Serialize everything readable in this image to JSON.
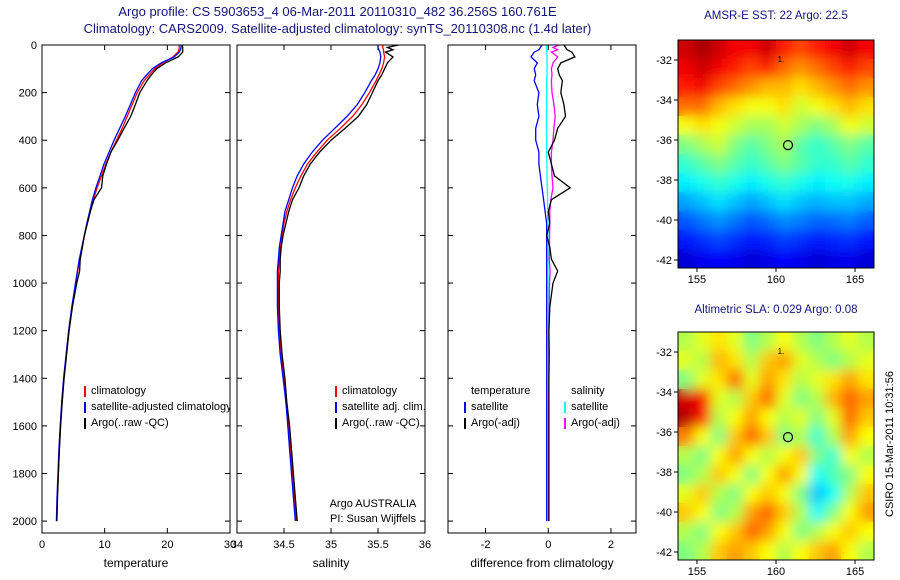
{
  "header": {
    "line1": "Argo profile: CS 5903653_4 06-Mar-2011 20110310_482 36.256S 160.761E",
    "line2": "Climatology: CARS2009. Satellite-adjusted climatology: synTS_20110308.nc (1.4d later)"
  },
  "watermark": "CSIRO 15-Mar-2011 10:31:56",
  "panels": {
    "temperature": {
      "xlabel": "temperature",
      "legend": [
        {
          "label": "climatology",
          "color": "#ff0000"
        },
        {
          "label": "satellite-adjusted climatology",
          "color": "#0000ff"
        },
        {
          "label": "Argo(..raw -QC)",
          "color": "#000000"
        }
      ]
    },
    "salinity": {
      "xlabel": "salinity",
      "legend": [
        {
          "label": "climatology",
          "color": "#ff0000"
        },
        {
          "label": "satellite adj. clim.",
          "color": "#0000ff"
        },
        {
          "label": "Argo(..raw -QC)",
          "color": "#000000"
        }
      ],
      "notes": [
        "Argo AUSTRALIA",
        "PI: Susan Wijffels"
      ]
    },
    "difference": {
      "xlabel": "difference from climatology",
      "legend_groups": [
        {
          "header": "temperature",
          "entries": [
            {
              "label": "satellite",
              "color": "#0000ff"
            },
            {
              "label": "Argo(-adj)",
              "color": "#000000"
            }
          ]
        },
        {
          "header": "salinity",
          "entries": [
            {
              "label": "satellite",
              "color": "#00ffff"
            },
            {
              "label": "Argo(-adj)",
              "color": "#ff00ff"
            }
          ]
        }
      ]
    }
  },
  "maps": {
    "sst": {
      "title": "AMSR-E SST: 22 Argo: 22.5"
    },
    "sla": {
      "title": "Altimetric SLA: 0.029 Argo: 0.08"
    }
  },
  "chart_data": {
    "type": "line",
    "depth_lim": [
      0,
      2050
    ],
    "depth_ticks": [
      0,
      200,
      400,
      600,
      800,
      1000,
      1200,
      1400,
      1600,
      1800,
      2000
    ],
    "depths": [
      0,
      10,
      20,
      30,
      50,
      75,
      100,
      125,
      150,
      200,
      250,
      300,
      350,
      400,
      450,
      500,
      550,
      600,
      650,
      700,
      750,
      800,
      850,
      900,
      950,
      1000,
      1100,
      1200,
      1300,
      1400,
      1500,
      1600,
      1700,
      1800,
      1900,
      2000
    ],
    "panels": [
      {
        "name": "temperature",
        "xlim": [
          0,
          30
        ],
        "xticks": [
          0,
          10,
          20,
          30
        ],
        "series": [
          {
            "name": "climatology",
            "color": "#ff0000",
            "values": [
              21.9,
              21.9,
              21.85,
              21.7,
              20.9,
              19.3,
              18.0,
              17.1,
              16.3,
              15.2,
              14.4,
              13.6,
              12.8,
              11.9,
              11.0,
              10.2,
              9.5,
              8.8,
              8.2,
              7.7,
              7.2,
              6.8,
              6.4,
              6.0,
              5.7,
              5.4,
              4.8,
              4.3,
              3.9,
              3.5,
              3.2,
              2.95,
              2.75,
              2.6,
              2.45,
              2.35
            ]
          },
          {
            "name": "satellite-adjusted-climatology",
            "color": "#0000ff",
            "values": [
              22.2,
              22.2,
              22.1,
              21.9,
              21.1,
              19.0,
              17.6,
              16.7,
              15.9,
              14.9,
              14.1,
              13.3,
              12.4,
              11.5,
              10.7,
              9.9,
              9.25,
              8.6,
              8.05,
              7.6,
              7.15,
              6.75,
              6.35,
              5.95,
              5.65,
              5.35,
              4.75,
              4.25,
              3.85,
              3.45,
              3.15,
              2.9,
              2.7,
              2.55,
              2.4,
              2.3
            ]
          },
          {
            "name": "argo-raw",
            "color": "#000000",
            "values": [
              22.4,
              22.45,
              22.45,
              22.45,
              21.75,
              19.7,
              18.3,
              17.45,
              16.75,
              15.6,
              14.9,
              14.15,
              13.1,
              12.1,
              11.0,
              10.3,
              9.7,
              9.5,
              8.3,
              7.7,
              7.25,
              6.75,
              6.45,
              6.1,
              6.0,
              5.55,
              4.85,
              4.32,
              3.93,
              3.52,
              3.22,
              2.97,
              2.77,
              2.62,
              2.47,
              2.37
            ]
          }
        ]
      },
      {
        "name": "salinity",
        "xlim": [
          34,
          36
        ],
        "xticks": [
          34,
          34.5,
          35,
          35.5,
          36
        ],
        "series": [
          {
            "name": "climatology",
            "color": "#ff0000",
            "values": [
              35.55,
              35.55,
              35.56,
              35.56,
              35.57,
              35.56,
              35.54,
              35.51,
              35.48,
              35.41,
              35.33,
              35.23,
              35.1,
              34.96,
              34.85,
              34.75,
              34.68,
              34.62,
              34.57,
              34.53,
              34.5,
              34.48,
              34.46,
              34.45,
              34.44,
              34.44,
              34.44,
              34.45,
              34.47,
              34.5,
              34.52,
              34.55,
              34.57,
              34.59,
              34.61,
              34.63
            ]
          },
          {
            "name": "satellite-adjusted-climatology",
            "color": "#0000ff",
            "values": [
              35.5,
              35.5,
              35.51,
              35.52,
              35.53,
              35.52,
              35.5,
              35.47,
              35.43,
              35.36,
              35.28,
              35.17,
              35.04,
              34.91,
              34.8,
              34.71,
              34.64,
              34.59,
              34.55,
              34.51,
              34.49,
              34.47,
              34.45,
              34.44,
              34.43,
              34.43,
              34.43,
              34.44,
              34.46,
              34.49,
              34.52,
              34.54,
              34.56,
              34.58,
              34.6,
              34.62
            ]
          },
          {
            "name": "argo-raw",
            "color": "#000000",
            "values": [
              35.72,
              35.6,
              35.66,
              35.58,
              35.66,
              35.6,
              35.57,
              35.54,
              35.5,
              35.44,
              35.38,
              35.29,
              35.15,
              35.0,
              34.88,
              34.78,
              34.71,
              34.66,
              34.59,
              34.55,
              34.52,
              34.49,
              34.47,
              34.46,
              34.46,
              34.45,
              34.45,
              34.46,
              34.48,
              34.51,
              34.53,
              34.56,
              34.58,
              34.6,
              34.62,
              34.64
            ]
          }
        ]
      },
      {
        "name": "difference",
        "xlim": [
          -3.2,
          2.8
        ],
        "xticks": [
          -2,
          0,
          2
        ],
        "series": [
          {
            "name": "temperature-satellite",
            "color": "#0000ff",
            "values": [
              -0.2,
              -0.25,
              -0.3,
              -0.45,
              -0.55,
              -0.35,
              -0.45,
              -0.4,
              -0.45,
              -0.3,
              -0.35,
              -0.3,
              -0.4,
              -0.4,
              -0.3,
              -0.3,
              -0.25,
              -0.2,
              -0.15,
              -0.1,
              -0.05,
              -0.05,
              -0.05,
              -0.05,
              -0.05,
              -0.05,
              -0.05,
              -0.05,
              -0.05,
              -0.05,
              -0.05,
              -0.05,
              -0.05,
              -0.05,
              -0.05,
              -0.05
            ]
          },
          {
            "name": "salinity-satellite",
            "color": "#00ffff",
            "values": [
              -0.05,
              -0.05,
              -0.05,
              -0.04,
              -0.04,
              -0.04,
              -0.04,
              -0.04,
              -0.05,
              -0.05,
              -0.05,
              -0.06,
              -0.06,
              -0.05,
              -0.05,
              -0.04,
              -0.04,
              -0.03,
              -0.02,
              -0.02,
              -0.01,
              -0.01,
              -0.01,
              -0.01,
              -0.01,
              -0.01,
              -0.01,
              -0.01,
              0,
              0,
              0,
              0,
              0,
              0,
              0,
              0
            ]
          },
          {
            "name": "salinity-argo-adj",
            "color": "#ff00ff",
            "values": [
              0.35,
              0.15,
              0.3,
              0.1,
              0.3,
              0.15,
              0.1,
              0.12,
              0.1,
              0.12,
              0.18,
              0.22,
              0.18,
              0.15,
              0.1,
              0.1,
              0.12,
              0.15,
              0.08,
              0.05,
              0.05,
              0.04,
              0.04,
              0.03,
              0.06,
              0.04,
              0.03,
              0.02,
              0.02,
              0.02,
              0.01,
              0.01,
              0.01,
              0.01,
              0.01,
              0.01
            ]
          },
          {
            "name": "temperature-argo-adj",
            "color": "#000000",
            "values": [
              0.5,
              0.55,
              0.6,
              0.75,
              0.85,
              0.4,
              0.3,
              0.35,
              0.45,
              0.4,
              0.5,
              0.55,
              0.3,
              0.2,
              0.0,
              0.1,
              0.2,
              0.7,
              0.1,
              0.0,
              0.05,
              -0.05,
              0.05,
              0.1,
              0.3,
              0.15,
              0.05,
              0.02,
              0.03,
              0.02,
              0.02,
              0.02,
              0.02,
              0.02,
              0.02,
              0.02
            ]
          }
        ]
      }
    ],
    "maps": [
      {
        "name": "amsre-sst",
        "lon_lim": [
          153.8,
          166.2
        ],
        "lat_lim": [
          -31,
          -42.4
        ],
        "xticks": [
          155,
          160,
          165
        ],
        "yticks": [
          -32,
          -34,
          -36,
          -38,
          -40,
          -42
        ],
        "vmin": 13.5,
        "vmax": 26.5,
        "argo_marker": {
          "lon": 160.761,
          "lat": -36.256
        },
        "annotation": {
          "lon": 160.1,
          "lat": -32.1,
          "text": "1."
        },
        "values": [
          [
            25.5,
            26,
            25.5,
            25,
            25,
            25.5,
            24.5,
            24,
            24.5,
            25,
            25.5,
            25
          ],
          [
            25,
            25.5,
            25,
            24.5,
            24,
            24.5,
            23.5,
            23,
            23.5,
            24,
            24.5,
            24
          ],
          [
            24.5,
            25,
            24,
            23.5,
            23,
            22.5,
            22.5,
            22,
            22.5,
            23,
            23.5,
            23
          ],
          [
            23.5,
            23.5,
            22.5,
            22,
            21.5,
            21.5,
            22,
            21,
            21.5,
            22,
            22.5,
            22
          ],
          [
            21.5,
            22,
            21.5,
            21,
            20.5,
            20.5,
            21,
            20.5,
            20,
            20.5,
            21.5,
            21
          ],
          [
            20,
            20.5,
            21,
            20,
            19.5,
            20,
            20.5,
            19.5,
            19,
            19.5,
            20,
            19.5
          ],
          [
            19,
            19.5,
            20,
            19.5,
            19,
            19.5,
            20,
            19.5,
            19,
            19,
            19.5,
            19
          ],
          [
            18.2,
            18.6,
            19,
            18.6,
            18.2,
            18.6,
            19,
            18.6,
            18.2,
            18.5,
            18.6,
            18.2
          ],
          [
            17.2,
            17.6,
            18,
            17.6,
            17.2,
            17.6,
            18,
            17.6,
            17.4,
            17.6,
            17.6,
            17.3
          ],
          [
            16.2,
            16.6,
            17,
            16.6,
            16.2,
            16.5,
            16.9,
            16.7,
            16.4,
            16.5,
            16.7,
            16.3
          ],
          [
            15.4,
            15.7,
            16,
            15.7,
            15.4,
            15.6,
            15.9,
            15.7,
            15.4,
            15.6,
            15.7,
            15.4
          ],
          [
            14.6,
            14.9,
            15.1,
            14.9,
            14.6,
            14.8,
            15.1,
            14.9,
            14.6,
            14.8,
            14.9,
            14.6
          ]
        ]
      },
      {
        "name": "altimetric-sla",
        "lon_lim": [
          153.8,
          166.2
        ],
        "lat_lim": [
          -31,
          -42.4
        ],
        "xticks": [
          155,
          160,
          165
        ],
        "yticks": [
          -32,
          -34,
          -36,
          -38,
          -40,
          -42
        ],
        "vmin": -0.5,
        "vmax": 0.5,
        "argo_marker": {
          "lon": 160.761,
          "lat": -36.256
        },
        "annotation": {
          "lon": 160.1,
          "lat": -32.1,
          "text": "1."
        },
        "values": [
          [
            0.05,
            0.1,
            0.15,
            0.1,
            0,
            0.05,
            0.12,
            0.05,
            0,
            0.05,
            0.1,
            0.05
          ],
          [
            0.1,
            0.05,
            0.2,
            0.15,
            0.05,
            0.18,
            0.22,
            0.1,
            0.05,
            0,
            0.05,
            0.1
          ],
          [
            0,
            0.1,
            0.15,
            0.28,
            0.1,
            0.22,
            0.15,
            0.05,
            0.1,
            0.15,
            0.22,
            0.15
          ],
          [
            0.42,
            0.38,
            0.1,
            0.05,
            0.18,
            0.28,
            0.1,
            0,
            0.05,
            0.2,
            0.28,
            0.22
          ],
          [
            0.45,
            0.35,
            0.05,
            0.12,
            0.22,
            0.12,
            0.05,
            0.1,
            0,
            0.1,
            0.28,
            0.18
          ],
          [
            0.25,
            0.12,
            0,
            0.18,
            0.28,
            0.18,
            0,
            0.05,
            -0.08,
            0.05,
            0.22,
            0.12
          ],
          [
            0.05,
            0,
            0.12,
            0.22,
            0.12,
            0.05,
            0.12,
            0.18,
            0,
            -0.08,
            0.12,
            0.05
          ],
          [
            0,
            0.05,
            0.18,
            0.12,
            0,
            0.12,
            0.22,
            0.12,
            -0.12,
            -0.05,
            0,
            0.12
          ],
          [
            0.1,
            0.18,
            0.05,
            0,
            0.12,
            0.18,
            0.12,
            0,
            -0.18,
            -0.12,
            0.05,
            0.18
          ],
          [
            0.18,
            0.12,
            0,
            0.05,
            0.22,
            0.28,
            0.18,
            0.05,
            -0.12,
            0,
            0.12,
            0.22
          ],
          [
            0.05,
            0,
            0.12,
            0.18,
            0.28,
            0.22,
            0.12,
            0,
            0.05,
            0.12,
            0.18,
            0.12
          ],
          [
            0,
            0.05,
            0.18,
            0.22,
            0.18,
            0.12,
            0.05,
            0.12,
            0.18,
            0.22,
            0.12,
            0.05
          ]
        ]
      }
    ]
  }
}
